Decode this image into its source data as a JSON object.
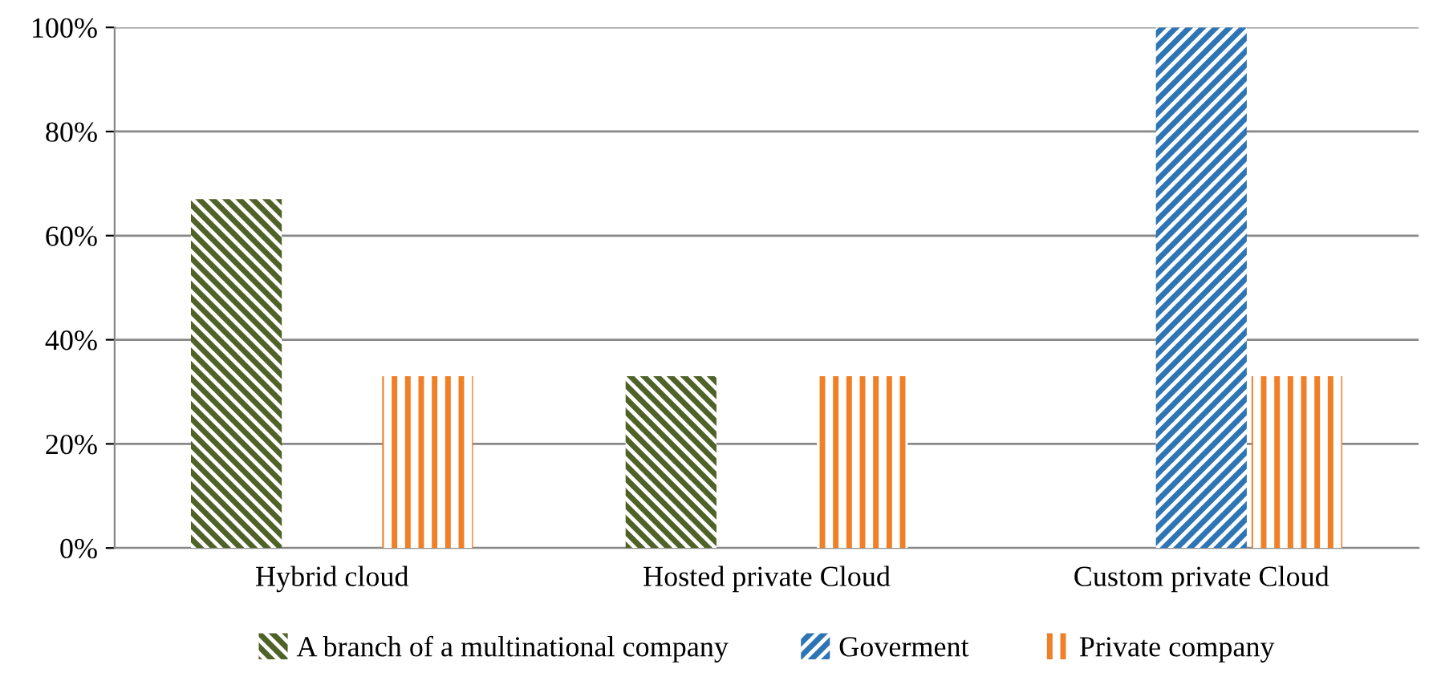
{
  "chart_data": {
    "type": "bar",
    "categories": [
      "Hybrid cloud",
      "Hosted private Cloud",
      "Custom private Cloud"
    ],
    "series": [
      {
        "name": "A branch of a multinational company",
        "color": "#4f6228",
        "values": [
          67,
          33,
          0
        ]
      },
      {
        "name": "Goverment",
        "color": "#2e75b6",
        "values": [
          0,
          0,
          100
        ]
      },
      {
        "name": "Private company",
        "color": "#f07f26",
        "values": [
          33,
          33,
          33
        ]
      }
    ],
    "ylim": [
      0,
      100
    ],
    "yticks": [
      {
        "value": 0,
        "label": "0%"
      },
      {
        "value": 20,
        "label": "20%"
      },
      {
        "value": 40,
        "label": "40%"
      },
      {
        "value": 60,
        "label": "60%"
      },
      {
        "value": 80,
        "label": "80%"
      },
      {
        "value": 100,
        "label": "100%"
      }
    ],
    "grid": "y",
    "legend": "bottom"
  }
}
